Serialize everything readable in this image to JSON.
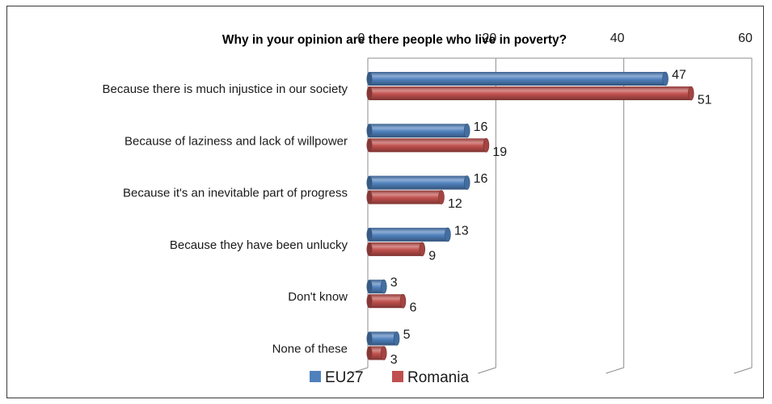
{
  "chart_data": {
    "type": "bar",
    "orientation": "horizontal",
    "title": "Why in your opinion are there people who live in poverty?",
    "categories": [
      "Because there is much injustice in our society",
      "Because of laziness and lack of willpower",
      "Because it's an inevitable part of progress",
      "Because they have been unlucky",
      "Don't know",
      "None of these"
    ],
    "series": [
      {
        "name": "EU27",
        "color": "#4f81bd",
        "values": [
          47,
          16,
          16,
          13,
          3,
          5
        ]
      },
      {
        "name": "Romania",
        "color": "#c0504d",
        "values": [
          51,
          19,
          12,
          9,
          6,
          3
        ]
      }
    ],
    "xlim": [
      0,
      60
    ],
    "xticks": [
      "0",
      "20",
      "40",
      "60"
    ],
    "grid": true,
    "legend": "bottom",
    "style": "3d-cylinder"
  }
}
